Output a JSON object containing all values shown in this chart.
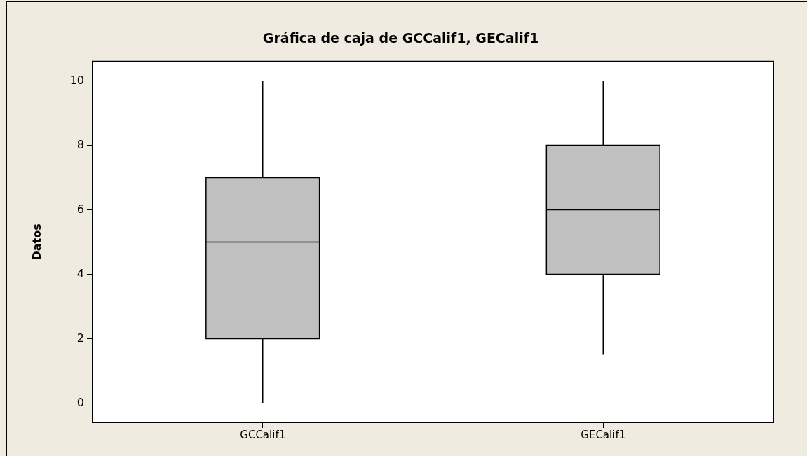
{
  "chart_data": {
    "type": "box",
    "title": "Gráfica de caja de GCCalif1, GECalif1",
    "ylabel": "Datos",
    "categories": [
      "GCCalif1",
      "GECalif1"
    ],
    "boxes": [
      {
        "low": 0,
        "q1": 2,
        "median": 5,
        "q3": 7,
        "high": 10
      },
      {
        "low": 1.5,
        "q1": 4,
        "median": 6,
        "q3": 8,
        "high": 10
      }
    ],
    "color": "#c0c0c0",
    "ylim": [
      -0.6,
      10.6
    ],
    "yticks": [
      0,
      2,
      4,
      6,
      8,
      10
    ],
    "grid": false,
    "legend": false
  }
}
